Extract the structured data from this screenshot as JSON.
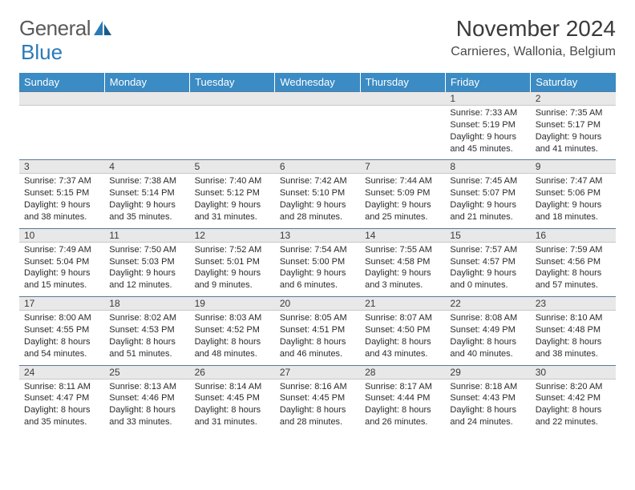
{
  "brand": {
    "part1": "General",
    "part2": "Blue"
  },
  "title": "November 2024",
  "location": "Carnieres, Wallonia, Belgium",
  "colors": {
    "header_bg": "#3b8bc4",
    "header_text": "#ffffff",
    "daynum_bg": "#e8e8e8",
    "border_top": "#5a7a9a",
    "brand_blue": "#2a7ab8",
    "text": "#3a3a3a"
  },
  "day_headers": [
    "Sunday",
    "Monday",
    "Tuesday",
    "Wednesday",
    "Thursday",
    "Friday",
    "Saturday"
  ],
  "weeks": [
    {
      "nums": [
        "",
        "",
        "",
        "",
        "",
        "1",
        "2"
      ],
      "cells": [
        null,
        null,
        null,
        null,
        null,
        {
          "sunrise": "Sunrise: 7:33 AM",
          "sunset": "Sunset: 5:19 PM",
          "day1": "Daylight: 9 hours",
          "day2": "and 45 minutes."
        },
        {
          "sunrise": "Sunrise: 7:35 AM",
          "sunset": "Sunset: 5:17 PM",
          "day1": "Daylight: 9 hours",
          "day2": "and 41 minutes."
        }
      ]
    },
    {
      "nums": [
        "3",
        "4",
        "5",
        "6",
        "7",
        "8",
        "9"
      ],
      "cells": [
        {
          "sunrise": "Sunrise: 7:37 AM",
          "sunset": "Sunset: 5:15 PM",
          "day1": "Daylight: 9 hours",
          "day2": "and 38 minutes."
        },
        {
          "sunrise": "Sunrise: 7:38 AM",
          "sunset": "Sunset: 5:14 PM",
          "day1": "Daylight: 9 hours",
          "day2": "and 35 minutes."
        },
        {
          "sunrise": "Sunrise: 7:40 AM",
          "sunset": "Sunset: 5:12 PM",
          "day1": "Daylight: 9 hours",
          "day2": "and 31 minutes."
        },
        {
          "sunrise": "Sunrise: 7:42 AM",
          "sunset": "Sunset: 5:10 PM",
          "day1": "Daylight: 9 hours",
          "day2": "and 28 minutes."
        },
        {
          "sunrise": "Sunrise: 7:44 AM",
          "sunset": "Sunset: 5:09 PM",
          "day1": "Daylight: 9 hours",
          "day2": "and 25 minutes."
        },
        {
          "sunrise": "Sunrise: 7:45 AM",
          "sunset": "Sunset: 5:07 PM",
          "day1": "Daylight: 9 hours",
          "day2": "and 21 minutes."
        },
        {
          "sunrise": "Sunrise: 7:47 AM",
          "sunset": "Sunset: 5:06 PM",
          "day1": "Daylight: 9 hours",
          "day2": "and 18 minutes."
        }
      ]
    },
    {
      "nums": [
        "10",
        "11",
        "12",
        "13",
        "14",
        "15",
        "16"
      ],
      "cells": [
        {
          "sunrise": "Sunrise: 7:49 AM",
          "sunset": "Sunset: 5:04 PM",
          "day1": "Daylight: 9 hours",
          "day2": "and 15 minutes."
        },
        {
          "sunrise": "Sunrise: 7:50 AM",
          "sunset": "Sunset: 5:03 PM",
          "day1": "Daylight: 9 hours",
          "day2": "and 12 minutes."
        },
        {
          "sunrise": "Sunrise: 7:52 AM",
          "sunset": "Sunset: 5:01 PM",
          "day1": "Daylight: 9 hours",
          "day2": "and 9 minutes."
        },
        {
          "sunrise": "Sunrise: 7:54 AM",
          "sunset": "Sunset: 5:00 PM",
          "day1": "Daylight: 9 hours",
          "day2": "and 6 minutes."
        },
        {
          "sunrise": "Sunrise: 7:55 AM",
          "sunset": "Sunset: 4:58 PM",
          "day1": "Daylight: 9 hours",
          "day2": "and 3 minutes."
        },
        {
          "sunrise": "Sunrise: 7:57 AM",
          "sunset": "Sunset: 4:57 PM",
          "day1": "Daylight: 9 hours",
          "day2": "and 0 minutes."
        },
        {
          "sunrise": "Sunrise: 7:59 AM",
          "sunset": "Sunset: 4:56 PM",
          "day1": "Daylight: 8 hours",
          "day2": "and 57 minutes."
        }
      ]
    },
    {
      "nums": [
        "17",
        "18",
        "19",
        "20",
        "21",
        "22",
        "23"
      ],
      "cells": [
        {
          "sunrise": "Sunrise: 8:00 AM",
          "sunset": "Sunset: 4:55 PM",
          "day1": "Daylight: 8 hours",
          "day2": "and 54 minutes."
        },
        {
          "sunrise": "Sunrise: 8:02 AM",
          "sunset": "Sunset: 4:53 PM",
          "day1": "Daylight: 8 hours",
          "day2": "and 51 minutes."
        },
        {
          "sunrise": "Sunrise: 8:03 AM",
          "sunset": "Sunset: 4:52 PM",
          "day1": "Daylight: 8 hours",
          "day2": "and 48 minutes."
        },
        {
          "sunrise": "Sunrise: 8:05 AM",
          "sunset": "Sunset: 4:51 PM",
          "day1": "Daylight: 8 hours",
          "day2": "and 46 minutes."
        },
        {
          "sunrise": "Sunrise: 8:07 AM",
          "sunset": "Sunset: 4:50 PM",
          "day1": "Daylight: 8 hours",
          "day2": "and 43 minutes."
        },
        {
          "sunrise": "Sunrise: 8:08 AM",
          "sunset": "Sunset: 4:49 PM",
          "day1": "Daylight: 8 hours",
          "day2": "and 40 minutes."
        },
        {
          "sunrise": "Sunrise: 8:10 AM",
          "sunset": "Sunset: 4:48 PM",
          "day1": "Daylight: 8 hours",
          "day2": "and 38 minutes."
        }
      ]
    },
    {
      "nums": [
        "24",
        "25",
        "26",
        "27",
        "28",
        "29",
        "30"
      ],
      "cells": [
        {
          "sunrise": "Sunrise: 8:11 AM",
          "sunset": "Sunset: 4:47 PM",
          "day1": "Daylight: 8 hours",
          "day2": "and 35 minutes."
        },
        {
          "sunrise": "Sunrise: 8:13 AM",
          "sunset": "Sunset: 4:46 PM",
          "day1": "Daylight: 8 hours",
          "day2": "and 33 minutes."
        },
        {
          "sunrise": "Sunrise: 8:14 AM",
          "sunset": "Sunset: 4:45 PM",
          "day1": "Daylight: 8 hours",
          "day2": "and 31 minutes."
        },
        {
          "sunrise": "Sunrise: 8:16 AM",
          "sunset": "Sunset: 4:45 PM",
          "day1": "Daylight: 8 hours",
          "day2": "and 28 minutes."
        },
        {
          "sunrise": "Sunrise: 8:17 AM",
          "sunset": "Sunset: 4:44 PM",
          "day1": "Daylight: 8 hours",
          "day2": "and 26 minutes."
        },
        {
          "sunrise": "Sunrise: 8:18 AM",
          "sunset": "Sunset: 4:43 PM",
          "day1": "Daylight: 8 hours",
          "day2": "and 24 minutes."
        },
        {
          "sunrise": "Sunrise: 8:20 AM",
          "sunset": "Sunset: 4:42 PM",
          "day1": "Daylight: 8 hours",
          "day2": "and 22 minutes."
        }
      ]
    }
  ]
}
